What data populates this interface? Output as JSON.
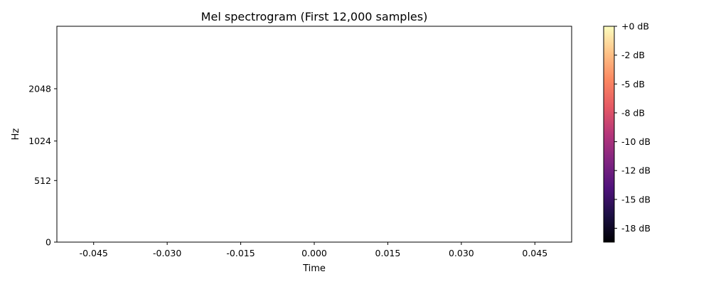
{
  "chart_data": {
    "type": "heatmap",
    "title": "Mel spectrogram (First 12,000 samples)",
    "xlabel": "Time",
    "ylabel": "Hz",
    "xlim": [
      -0.0525,
      0.0525
    ],
    "x_ticks": [
      -0.045,
      -0.03,
      -0.015,
      0.0,
      0.015,
      0.03,
      0.045
    ],
    "x_tick_labels": [
      "-0.045",
      "-0.030",
      "-0.015",
      "0.000",
      "0.015",
      "0.030",
      "0.045"
    ],
    "y_scale": "mel",
    "y_ticks": [
      0,
      512,
      1024,
      2048
    ],
    "y_tick_labels": [
      "0",
      "512",
      "1024",
      "2048"
    ],
    "ylim": [
      0,
      4096
    ],
    "grid": false,
    "values": [],
    "colorbar": {
      "colormap": "magma",
      "range_db": [
        -18.7,
        0
      ],
      "ticks": [
        0,
        -2.5,
        -5,
        -7.5,
        -10,
        -12.5,
        -15,
        -17.5
      ],
      "tick_labels": [
        "+0 dB",
        "-2 dB",
        "-5 dB",
        "-8 dB",
        "-10 dB",
        "-12 dB",
        "-15 dB",
        "-18 dB"
      ],
      "colors": [
        "#000004",
        "#1c1044",
        "#4f127b",
        "#812581",
        "#b5367a",
        "#e55964",
        "#fb8761",
        "#fec287",
        "#fcfdbf"
      ]
    }
  }
}
